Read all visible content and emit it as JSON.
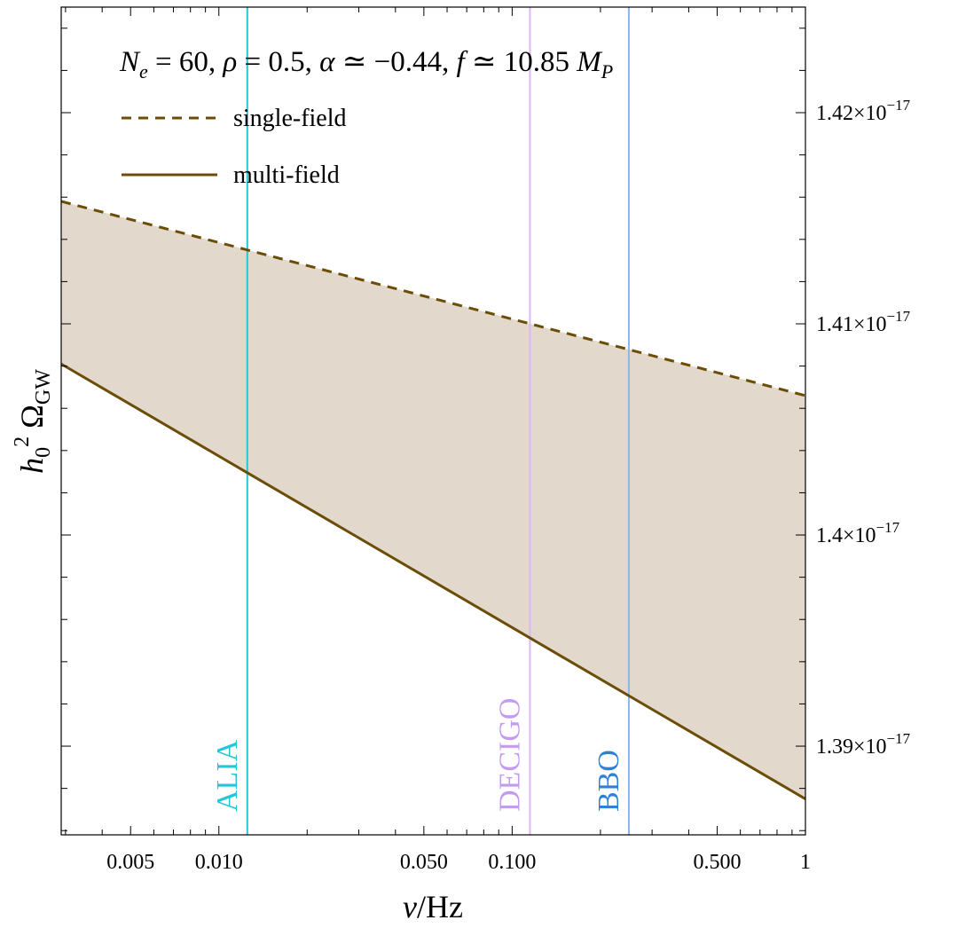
{
  "chart_data": {
    "type": "line",
    "title": "N_e = 60,  ρ = 0.5,  α ≃ −0.44,  f ≃ 10.85 M_P",
    "title_parts": {
      "ne_lhs": "N",
      "ne_sub": "e",
      "ne_rhs": " = 60,  ",
      "rho": "ρ",
      "rho_rhs": " = 0.5,  ",
      "alpha": "α",
      "alpha_rhs": " ≃ −0.44,  ",
      "f": "f",
      "f_rhs": " ≃ 10.85 ",
      "mp": "M",
      "mp_sub": "P"
    },
    "xlabel": "ν/Hz",
    "xlabel_parts": {
      "nu": "ν",
      "rest": "/Hz"
    },
    "ylabel": "h0^2 ΩGW",
    "ylabel_parts": {
      "h": "h",
      "h_sub": "0",
      "sup": "2",
      "omega": " Ω",
      "omega_sub": "GW"
    },
    "x_scale": "log",
    "xlim": [
      0.0029,
      1.0
    ],
    "ylim": [
      1.3858e-17,
      1.425e-17
    ],
    "x_ticks": [
      {
        "value": 0.005,
        "label": "0.005"
      },
      {
        "value": 0.01,
        "label": "0.010"
      },
      {
        "value": 0.05,
        "label": "0.050"
      },
      {
        "value": 0.1,
        "label": "0.100"
      },
      {
        "value": 0.5,
        "label": "0.500"
      },
      {
        "value": 1.0,
        "label": "1"
      }
    ],
    "y_ticks": [
      {
        "value": 1.39e-17,
        "mantissa": "1.39",
        "times": "×",
        "base": "10",
        "exp": "−17"
      },
      {
        "value": 1.4e-17,
        "mantissa": "1.4",
        "times": "×",
        "base": "10",
        "exp": "−17"
      },
      {
        "value": 1.41e-17,
        "mantissa": "1.41",
        "times": "×",
        "base": "10",
        "exp": "−17"
      },
      {
        "value": 1.42e-17,
        "mantissa": "1.42",
        "times": "×",
        "base": "10",
        "exp": "−17"
      }
    ],
    "series": [
      {
        "name": "single-field",
        "style": "dashed",
        "color": "#6b4d08",
        "x": [
          0.0029,
          1.0
        ],
        "y": [
          1.4158e-17,
          1.4066e-17
        ]
      },
      {
        "name": "multi-field",
        "style": "solid",
        "color": "#6b4d08",
        "x": [
          0.0029,
          1.0
        ],
        "y": [
          1.4081e-17,
          1.3875e-17
        ]
      }
    ],
    "fill_between": {
      "upper": "single-field",
      "lower": "multi-field",
      "color": "#e2d8cc"
    },
    "vlines": [
      {
        "name": "ALIA",
        "x": 0.0125,
        "color": "#26c6da",
        "label_color": "#26c6da"
      },
      {
        "name": "DECIGO",
        "x": 0.115,
        "color": "#d9b8f0",
        "label_color": "#c39bf0"
      },
      {
        "name": "BBO",
        "x": 0.25,
        "color": "#8db4ec",
        "label_color": "#2f80d9"
      }
    ],
    "legend": {
      "position": "top-left",
      "entries": [
        {
          "label": "single-field",
          "style": "dashed"
        },
        {
          "label": "multi-field",
          "style": "solid"
        }
      ]
    },
    "grid": false
  }
}
